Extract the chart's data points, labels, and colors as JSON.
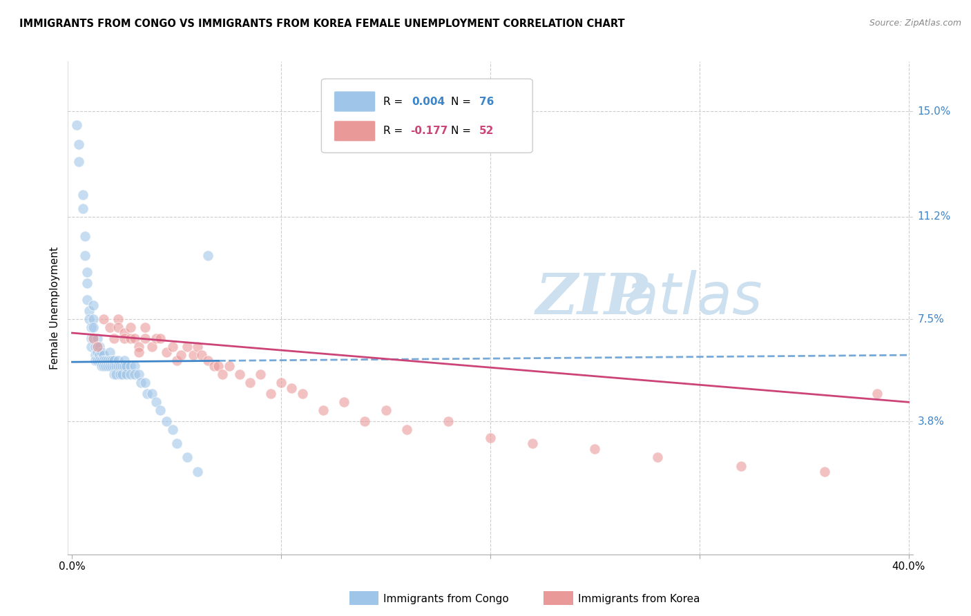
{
  "title": "IMMIGRANTS FROM CONGO VS IMMIGRANTS FROM KOREA FEMALE UNEMPLOYMENT CORRELATION CHART",
  "source": "Source: ZipAtlas.com",
  "ylabel": "Female Unemployment",
  "ytick_labels": [
    "15.0%",
    "11.2%",
    "7.5%",
    "3.8%"
  ],
  "ytick_values": [
    0.15,
    0.112,
    0.075,
    0.038
  ],
  "xlim": [
    -0.002,
    0.402
  ],
  "ylim": [
    -0.01,
    0.168
  ],
  "congo_color": "#9fc5e8",
  "korea_color": "#ea9999",
  "congo_trend_color": "#3d85c8",
  "korea_trend_color": "#cc4477",
  "watermark_zip": "ZIP",
  "watermark_atlas": "atlas",
  "watermark_color": "#ddeeff",
  "legend_R_label": "R = ",
  "legend_N_label": "N = ",
  "congo_R_val": "0.004",
  "congo_N_val": "76",
  "korea_R_val": "-0.177",
  "korea_N_val": "52",
  "legend_value_color_congo": "#3d85c8",
  "legend_value_color_korea": "#cc4477",
  "congo_trend_x": [
    0.0,
    0.4
  ],
  "congo_trend_y": [
    0.0595,
    0.062
  ],
  "korea_trend_x": [
    0.0,
    0.4
  ],
  "korea_trend_y": [
    0.07,
    0.045
  ],
  "congo_x": [
    0.002,
    0.003,
    0.003,
    0.005,
    0.005,
    0.006,
    0.006,
    0.007,
    0.007,
    0.007,
    0.008,
    0.008,
    0.009,
    0.009,
    0.009,
    0.01,
    0.01,
    0.01,
    0.01,
    0.011,
    0.011,
    0.011,
    0.012,
    0.012,
    0.012,
    0.012,
    0.013,
    0.013,
    0.013,
    0.014,
    0.014,
    0.014,
    0.015,
    0.015,
    0.015,
    0.016,
    0.016,
    0.017,
    0.017,
    0.018,
    0.018,
    0.018,
    0.019,
    0.019,
    0.02,
    0.02,
    0.02,
    0.021,
    0.021,
    0.022,
    0.022,
    0.023,
    0.023,
    0.024,
    0.024,
    0.025,
    0.025,
    0.026,
    0.026,
    0.028,
    0.028,
    0.03,
    0.03,
    0.032,
    0.033,
    0.035,
    0.036,
    0.038,
    0.04,
    0.042,
    0.045,
    0.048,
    0.05,
    0.055,
    0.06,
    0.065
  ],
  "congo_y": [
    0.145,
    0.138,
    0.132,
    0.12,
    0.115,
    0.105,
    0.098,
    0.092,
    0.088,
    0.082,
    0.078,
    0.075,
    0.072,
    0.068,
    0.065,
    0.08,
    0.075,
    0.072,
    0.068,
    0.065,
    0.062,
    0.06,
    0.068,
    0.065,
    0.063,
    0.06,
    0.065,
    0.062,
    0.06,
    0.063,
    0.06,
    0.058,
    0.062,
    0.06,
    0.058,
    0.06,
    0.058,
    0.06,
    0.058,
    0.063,
    0.06,
    0.058,
    0.06,
    0.058,
    0.06,
    0.058,
    0.055,
    0.058,
    0.055,
    0.06,
    0.058,
    0.058,
    0.055,
    0.058,
    0.055,
    0.06,
    0.058,
    0.058,
    0.055,
    0.058,
    0.055,
    0.058,
    0.055,
    0.055,
    0.052,
    0.052,
    0.048,
    0.048,
    0.045,
    0.042,
    0.038,
    0.035,
    0.03,
    0.025,
    0.02,
    0.098
  ],
  "korea_x": [
    0.01,
    0.012,
    0.015,
    0.018,
    0.02,
    0.022,
    0.022,
    0.025,
    0.025,
    0.028,
    0.028,
    0.03,
    0.032,
    0.032,
    0.035,
    0.035,
    0.038,
    0.04,
    0.042,
    0.045,
    0.048,
    0.05,
    0.052,
    0.055,
    0.058,
    0.06,
    0.062,
    0.065,
    0.068,
    0.07,
    0.072,
    0.075,
    0.08,
    0.085,
    0.09,
    0.095,
    0.1,
    0.105,
    0.11,
    0.12,
    0.13,
    0.14,
    0.15,
    0.16,
    0.18,
    0.2,
    0.22,
    0.25,
    0.28,
    0.32,
    0.36,
    0.385
  ],
  "korea_y": [
    0.068,
    0.065,
    0.075,
    0.072,
    0.068,
    0.075,
    0.072,
    0.07,
    0.068,
    0.072,
    0.068,
    0.068,
    0.065,
    0.063,
    0.072,
    0.068,
    0.065,
    0.068,
    0.068,
    0.063,
    0.065,
    0.06,
    0.062,
    0.065,
    0.062,
    0.065,
    0.062,
    0.06,
    0.058,
    0.058,
    0.055,
    0.058,
    0.055,
    0.052,
    0.055,
    0.048,
    0.052,
    0.05,
    0.048,
    0.042,
    0.045,
    0.038,
    0.042,
    0.035,
    0.038,
    0.032,
    0.03,
    0.028,
    0.025,
    0.022,
    0.02,
    0.048
  ]
}
